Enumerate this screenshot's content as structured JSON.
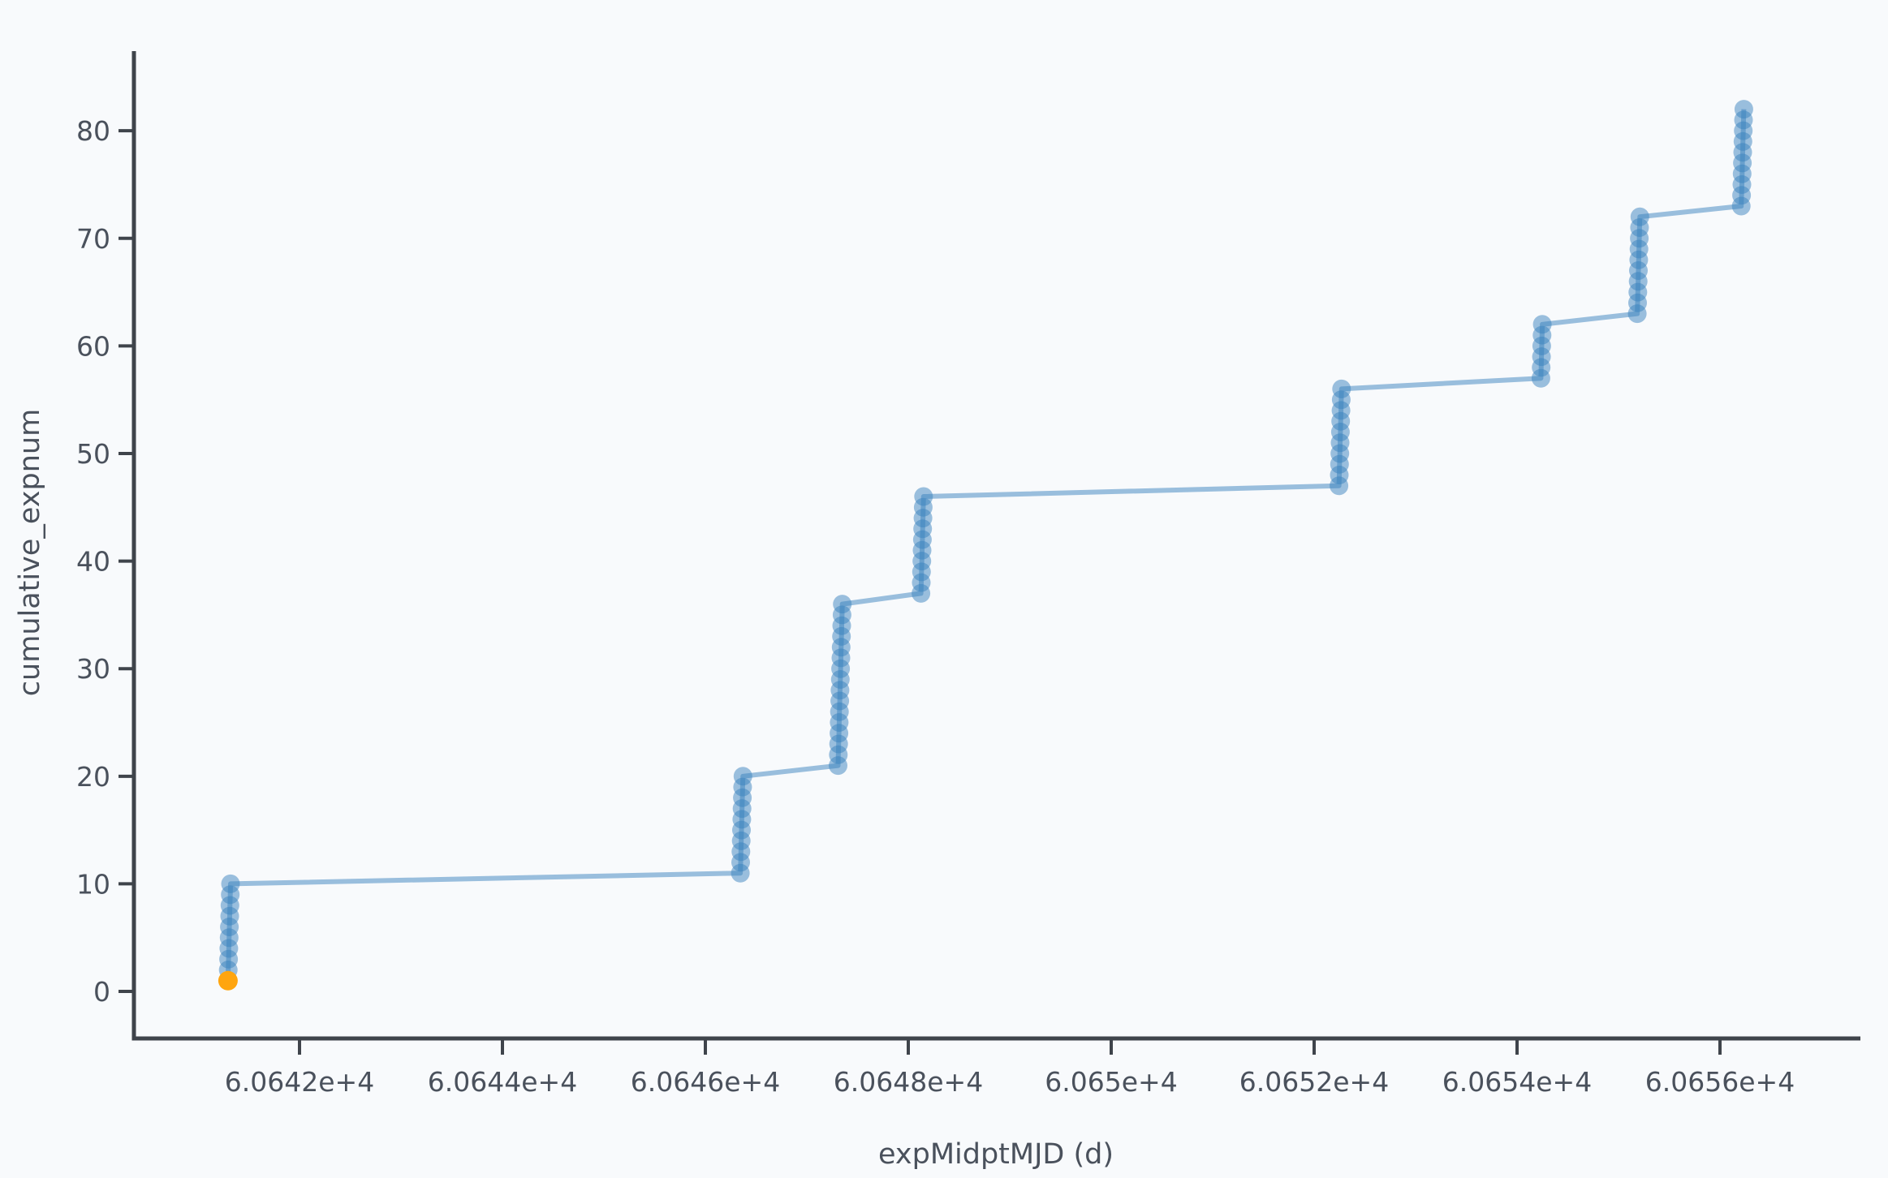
{
  "chart_data": {
    "type": "scatter",
    "mode": "lines+markers",
    "title": "",
    "xlabel": "expMidptMJD (d)",
    "ylabel": "cumulative_expnum",
    "xlim": [
      60640.368,
      60657.368
    ],
    "ylim": [
      -4.37,
      87.25
    ],
    "grid": false,
    "legend": "none",
    "x_ticks": [
      {
        "v": 60642,
        "label": "6.0642e+4"
      },
      {
        "v": 60644,
        "label": "6.0644e+4"
      },
      {
        "v": 60646,
        "label": "6.0646e+4"
      },
      {
        "v": 60648,
        "label": "6.0648e+4"
      },
      {
        "v": 60650,
        "label": "6.065e+4"
      },
      {
        "v": 60652,
        "label": "6.0652e+4"
      },
      {
        "v": 60654,
        "label": "6.0654e+4"
      },
      {
        "v": 60656,
        "label": "6.0656e+4"
      }
    ],
    "y_ticks": [
      {
        "v": 0,
        "label": "0"
      },
      {
        "v": 10,
        "label": "10"
      },
      {
        "v": 20,
        "label": "20"
      },
      {
        "v": 30,
        "label": "30"
      },
      {
        "v": 40,
        "label": "40"
      },
      {
        "v": 50,
        "label": "50"
      },
      {
        "v": 60,
        "label": "60"
      },
      {
        "v": 70,
        "label": "70"
      },
      {
        "v": 80,
        "label": "80"
      }
    ],
    "series": [
      {
        "name": "cumulative_expnum",
        "color": "#3a82be",
        "opacity": 0.5,
        "line_width": 6,
        "marker_radius": 11.5,
        "points": [
          [
            60641.295,
            1
          ],
          [
            60641.2978,
            2
          ],
          [
            60641.3006,
            3
          ],
          [
            60641.3034,
            4
          ],
          [
            60641.3062,
            5
          ],
          [
            60641.309,
            6
          ],
          [
            60641.3118,
            7
          ],
          [
            60641.3146,
            8
          ],
          [
            60641.3174,
            9
          ],
          [
            60641.3202,
            10
          ],
          [
            60646.345,
            11
          ],
          [
            60646.3478,
            12
          ],
          [
            60646.3506,
            13
          ],
          [
            60646.3534,
            14
          ],
          [
            60646.3562,
            15
          ],
          [
            60646.359,
            16
          ],
          [
            60646.3618,
            17
          ],
          [
            60646.3646,
            18
          ],
          [
            60646.3674,
            19
          ],
          [
            60646.3702,
            20
          ],
          [
            60647.308,
            21
          ],
          [
            60647.3108,
            22
          ],
          [
            60647.3136,
            23
          ],
          [
            60647.3164,
            24
          ],
          [
            60647.3192,
            25
          ],
          [
            60647.322,
            26
          ],
          [
            60647.3248,
            27
          ],
          [
            60647.3276,
            28
          ],
          [
            60647.3304,
            29
          ],
          [
            60647.3332,
            30
          ],
          [
            60647.336,
            31
          ],
          [
            60647.3388,
            32
          ],
          [
            60647.3416,
            33
          ],
          [
            60647.3444,
            34
          ],
          [
            60647.3472,
            35
          ],
          [
            60647.35,
            36
          ],
          [
            60648.125,
            37
          ],
          [
            60648.1278,
            38
          ],
          [
            60648.1306,
            39
          ],
          [
            60648.1334,
            40
          ],
          [
            60648.1362,
            41
          ],
          [
            60648.139,
            42
          ],
          [
            60648.1418,
            43
          ],
          [
            60648.1446,
            44
          ],
          [
            60648.1474,
            45
          ],
          [
            60648.1502,
            46
          ],
          [
            60652.245,
            47
          ],
          [
            60652.2478,
            48
          ],
          [
            60652.2506,
            49
          ],
          [
            60652.2534,
            50
          ],
          [
            60652.2562,
            51
          ],
          [
            60652.259,
            52
          ],
          [
            60652.2618,
            53
          ],
          [
            60652.2646,
            54
          ],
          [
            60652.2674,
            55
          ],
          [
            60652.2702,
            56
          ],
          [
            60654.235,
            57
          ],
          [
            60654.2378,
            58
          ],
          [
            60654.2406,
            59
          ],
          [
            60654.2434,
            60
          ],
          [
            60654.2462,
            61
          ],
          [
            60654.249,
            62
          ],
          [
            60655.185,
            63
          ],
          [
            60655.1878,
            64
          ],
          [
            60655.1906,
            65
          ],
          [
            60655.1934,
            66
          ],
          [
            60655.1962,
            67
          ],
          [
            60655.199,
            68
          ],
          [
            60655.2018,
            69
          ],
          [
            60655.2046,
            70
          ],
          [
            60655.2074,
            71
          ],
          [
            60655.2102,
            72
          ],
          [
            60656.21,
            73
          ],
          [
            60656.2128,
            74
          ],
          [
            60656.2156,
            75
          ],
          [
            60656.2184,
            76
          ],
          [
            60656.2212,
            77
          ],
          [
            60656.224,
            78
          ],
          [
            60656.2268,
            79
          ],
          [
            60656.2296,
            80
          ],
          [
            60656.2324,
            81
          ],
          [
            60656.2352,
            82
          ]
        ]
      }
    ],
    "highlight_point": {
      "x": 60641.295,
      "y": 1,
      "color": "#ffa50f",
      "radius": 12
    },
    "colors": {
      "background": "#f8fafc",
      "axis_line": "#3f444b",
      "tick_text": "#4a515c",
      "series_blue": "#3a82be",
      "highlight_orange": "#ffa50f"
    }
  }
}
